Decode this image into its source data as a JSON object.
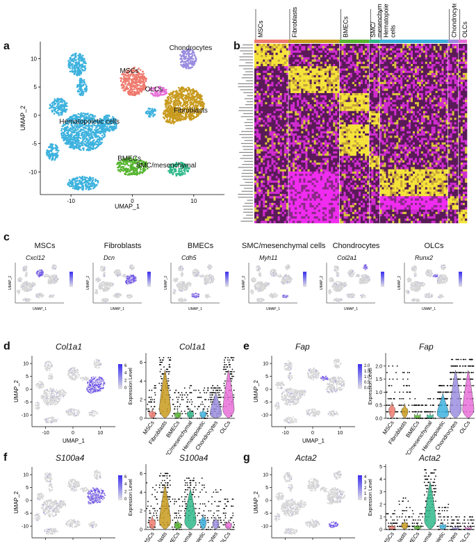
{
  "panels": {
    "a": {
      "letter": "a",
      "xlabel": "UMAP_1",
      "ylabel": "UMAP_2",
      "xticks": [
        "-10",
        "0",
        "10"
      ],
      "yticks": [
        "10",
        "5",
        "0",
        "-5",
        "-10"
      ],
      "clusters": [
        {
          "name": "Chondrocytes",
          "color": "#9b8de0"
        },
        {
          "name": "MSCs",
          "color": "#ef7a6e"
        },
        {
          "name": "OLCs",
          "color": "#e770d8"
        },
        {
          "name": "Fibroblasts",
          "color": "#c89a1d"
        },
        {
          "name": "Hematopoietic cells",
          "color": "#3db2de"
        },
        {
          "name": "BMECs",
          "color": "#56b530"
        },
        {
          "name": "SMC/mesenchymal",
          "color": "#2fb98b"
        }
      ]
    },
    "b": {
      "letter": "b",
      "groups": [
        {
          "name": "MSCs",
          "color": "#ef7a6e"
        },
        {
          "name": "Fibroblasts",
          "color": "#c89a1d"
        },
        {
          "name": "BMECs",
          "color": "#56b530"
        },
        {
          "name": "SMC/ mesenchymal",
          "color": "#2fb98b"
        },
        {
          "name": "Hematopoietic cells",
          "color": "#3db2de"
        },
        {
          "name": "Chondrocytes",
          "color": "#9b8de0"
        },
        {
          "name": "OLCs",
          "color": "#e770d8"
        }
      ]
    },
    "c": {
      "letter": "c",
      "items": [
        {
          "title": "MSCs",
          "gene": "Cxcl12"
        },
        {
          "title": "Fibroblasts",
          "gene": "Dcn"
        },
        {
          "title": "BMECs",
          "gene": "Cdh5"
        },
        {
          "title": "SMC/mesenchymal cells",
          "gene": "Myh11"
        },
        {
          "title": "Chondrocytes",
          "gene": "Col2a1"
        },
        {
          "title": "OLCs",
          "gene": "Runx2"
        }
      ],
      "xlabel": "UMAP_1",
      "ylabel": "UMAP_2"
    },
    "d": {
      "letter": "d",
      "gene": "Col1a1",
      "legend_ticks": [
        "6",
        "4",
        "2",
        "0"
      ],
      "violin_yticks": [
        "6",
        "4",
        "2",
        "0"
      ]
    },
    "e": {
      "letter": "e",
      "gene": "Fap",
      "legend_ticks": [
        "2.0",
        "1.5",
        "1.0",
        "0.5",
        "0.0"
      ],
      "violin_yticks": [
        "2.0",
        "1.5",
        "1.0",
        "0.5",
        "0.0"
      ]
    },
    "f": {
      "letter": "f",
      "gene": "S100a4",
      "legend_ticks": [
        "6",
        "4",
        "2",
        "0"
      ],
      "violin_yticks": [
        "6",
        "4",
        "2",
        "0"
      ]
    },
    "g": {
      "letter": "g",
      "gene": "Acta2",
      "legend_ticks": [
        "4",
        "3",
        "2",
        "1",
        "0"
      ],
      "violin_yticks": [
        "5",
        "4",
        "3",
        "2",
        "1",
        "0"
      ]
    },
    "violin_common": {
      "ylabel": "Expression Level",
      "categories": [
        "MSCs",
        "Fibroblasts",
        "BMECs",
        "SMC/mesenchymal",
        "Hematopoietic",
        "Chondrocytes",
        "OLCs"
      ]
    },
    "feature_common": {
      "xlabel": "UMAP_1",
      "ylabel": "UMAP_2",
      "xticks": [
        "-10",
        "0",
        "10"
      ],
      "yticks": [
        "10",
        "5",
        "0",
        "-5",
        "-10"
      ]
    }
  },
  "chart_data": [
    {
      "type": "scatter",
      "panel": "a",
      "xlabel": "UMAP_1",
      "ylabel": "UMAP_2",
      "xlim": [
        -15,
        15
      ],
      "ylim": [
        -14,
        13
      ],
      "clusters": [
        {
          "name": "Chondrocytes",
          "center": [
            9,
            10
          ]
        },
        {
          "name": "MSCs",
          "center": [
            0,
            6
          ]
        },
        {
          "name": "OLCs",
          "center": [
            4,
            4
          ]
        },
        {
          "name": "Fibroblasts",
          "center": [
            8,
            1.5
          ]
        },
        {
          "name": "Hematopoietic cells",
          "center": [
            -10,
            -3
          ]
        },
        {
          "name": "BMECs",
          "center": [
            0,
            -9
          ]
        },
        {
          "name": "SMC/mesenchymal",
          "center": [
            7,
            -9.5
          ]
        }
      ]
    },
    {
      "type": "violin",
      "panel": "d",
      "ylabel": "Expression Level",
      "categories": [
        "MSCs",
        "Fibroblasts",
        "BMECs",
        "SMC/mesenchymal",
        "Hematopoietic",
        "Chondrocytes",
        "OLCs"
      ],
      "max_values": [
        3.5,
        6.5,
        3.0,
        3.5,
        3.5,
        3.5,
        6.5
      ]
    },
    {
      "type": "violin",
      "panel": "e",
      "ylabel": "Expression Level",
      "categories": [
        "MSCs",
        "Fibroblasts",
        "BMECs",
        "SMC/mesenchymal",
        "Hematopoietic",
        "Chondrocytes",
        "OLCs"
      ],
      "max_values": [
        2.1,
        1.9,
        0.7,
        0.7,
        1.2,
        2.3,
        2.3
      ]
    },
    {
      "type": "violin",
      "panel": "f",
      "ylabel": "Expression Level",
      "categories": [
        "MSCs",
        "Fibroblasts",
        "BMECs",
        "SMC/mesenchymal",
        "Hematopoietic",
        "Chondrocytes",
        "OLCs"
      ],
      "max_values": [
        5.0,
        6.0,
        3.5,
        5.5,
        5.5,
        4.5,
        3.5
      ]
    },
    {
      "type": "violin",
      "panel": "g",
      "ylabel": "Expression Level",
      "categories": [
        "MSCs",
        "Fibroblasts",
        "BMECs",
        "SMC/mesenchymal",
        "Hematopoietic",
        "Chondrocytes",
        "OLCs"
      ],
      "max_values": [
        1.5,
        2.5,
        1.5,
        4.8,
        2.0,
        1.0,
        1.0
      ]
    }
  ]
}
